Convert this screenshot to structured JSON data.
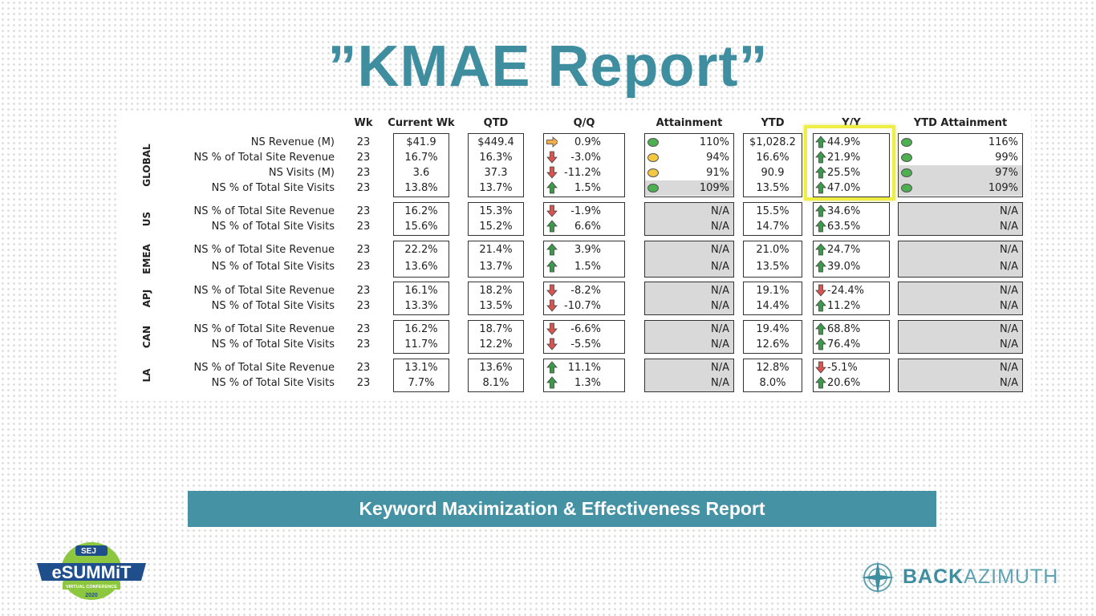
{
  "slide": {
    "title": "”KMAE Report”",
    "banner": "Keyword Maximization & Effectiveness Report"
  },
  "logos": {
    "esummit": {
      "top": "SEJ",
      "main": "eSUMMiT",
      "sub": "VIRTUAL CONFERENCE",
      "year": "2020"
    },
    "backazimuth": {
      "text_bold": "BACK",
      "text_light": "AZIMUTH"
    }
  },
  "colors": {
    "accent": "#3e8ea0",
    "banner": "#4592a4",
    "highlight": "#eeee44",
    "arrow_up": "#3a9a4a",
    "arrow_down": "#d9534f",
    "arrow_right": "#f0ad4e",
    "dot_green": "#4caf50",
    "dot_yellow": "#f5c842",
    "na_fill": "#d9d9d9"
  },
  "table": {
    "headers": {
      "wk": "Wk",
      "current_wk": "Current Wk",
      "qtd": "QTD",
      "qq": "Q/Q",
      "attainment": "Attainment",
      "ytd": "YTD",
      "yy": "Y/Y",
      "ytd_attainment": "YTD Attainment"
    },
    "groups": [
      {
        "region": "GLOBAL",
        "rows": [
          {
            "label": "NS Revenue (M)",
            "wk": "23",
            "current": "$41.9",
            "qtd": "$449.4",
            "qq": "0.9%",
            "qq_dir": "right",
            "att": "110%",
            "att_dot": "green",
            "ytd": "$1,028.2",
            "yy": "44.9%",
            "yy_dir": "up",
            "ytda": "116%",
            "ytda_dot": "green"
          },
          {
            "label": "NS % of Total Site Revenue",
            "wk": "23",
            "current": "16.7%",
            "qtd": "16.3%",
            "qq": "-3.0%",
            "qq_dir": "down",
            "att": "94%",
            "att_dot": "yellow",
            "ytd": "16.6%",
            "yy": "21.9%",
            "yy_dir": "up",
            "ytda": "99%",
            "ytda_dot": "green"
          },
          {
            "label": "NS Visits (M)",
            "wk": "23",
            "current": "3.6",
            "qtd": "37.3",
            "qq": "-11.2%",
            "qq_dir": "down",
            "att": "91%",
            "att_dot": "yellow",
            "ytd": "90.9",
            "yy": "25.5%",
            "yy_dir": "up",
            "ytda": "97%",
            "ytda_dot": "green"
          },
          {
            "label": "NS % of Total Site Visits",
            "wk": "23",
            "current": "13.8%",
            "qtd": "13.7%",
            "qq": "1.5%",
            "qq_dir": "up",
            "att": "109%",
            "att_dot": "green",
            "ytd": "13.5%",
            "yy": "47.0%",
            "yy_dir": "up",
            "ytda": "109%",
            "ytda_dot": "green"
          }
        ]
      },
      {
        "region": "US",
        "rows": [
          {
            "label": "NS % of Total Site Revenue",
            "wk": "23",
            "current": "16.2%",
            "qtd": "15.3%",
            "qq": "-1.9%",
            "qq_dir": "down",
            "att": "N/A",
            "ytd": "15.5%",
            "yy": "34.6%",
            "yy_dir": "up",
            "ytda": "N/A"
          },
          {
            "label": "NS % of Total Site Visits",
            "wk": "23",
            "current": "15.6%",
            "qtd": "15.2%",
            "qq": "6.6%",
            "qq_dir": "up",
            "att": "N/A",
            "ytd": "14.7%",
            "yy": "63.5%",
            "yy_dir": "up",
            "ytda": "N/A"
          }
        ]
      },
      {
        "region": "EMEA",
        "rows": [
          {
            "label": "NS % of Total Site Revenue",
            "wk": "23",
            "current": "22.2%",
            "qtd": "21.4%",
            "qq": "3.9%",
            "qq_dir": "up",
            "att": "N/A",
            "ytd": "21.0%",
            "yy": "24.7%",
            "yy_dir": "up",
            "ytda": "N/A"
          },
          {
            "label": "NS % of Total Site Visits",
            "wk": "23",
            "current": "13.6%",
            "qtd": "13.7%",
            "qq": "1.5%",
            "qq_dir": "up",
            "att": "N/A",
            "ytd": "13.5%",
            "yy": "39.0%",
            "yy_dir": "up",
            "ytda": "N/A"
          }
        ]
      },
      {
        "region": "APJ",
        "rows": [
          {
            "label": "NS % of Total Site Revenue",
            "wk": "23",
            "current": "16.1%",
            "qtd": "18.2%",
            "qq": "-8.2%",
            "qq_dir": "down",
            "att": "N/A",
            "ytd": "19.1%",
            "yy": "-24.4%",
            "yy_dir": "down",
            "ytda": "N/A"
          },
          {
            "label": "NS % of Total Site Visits",
            "wk": "23",
            "current": "13.3%",
            "qtd": "13.5%",
            "qq": "-10.7%",
            "qq_dir": "down",
            "att": "N/A",
            "ytd": "14.4%",
            "yy": "11.2%",
            "yy_dir": "up",
            "ytda": "N/A"
          }
        ]
      },
      {
        "region": "CAN",
        "rows": [
          {
            "label": "NS % of Total Site Revenue",
            "wk": "23",
            "current": "16.2%",
            "qtd": "18.7%",
            "qq": "-6.6%",
            "qq_dir": "down",
            "att": "N/A",
            "ytd": "19.4%",
            "yy": "68.8%",
            "yy_dir": "up",
            "ytda": "N/A"
          },
          {
            "label": "NS % of Total Site Visits",
            "wk": "23",
            "current": "11.7%",
            "qtd": "12.2%",
            "qq": "-5.5%",
            "qq_dir": "down",
            "att": "N/A",
            "ytd": "12.6%",
            "yy": "76.4%",
            "yy_dir": "up",
            "ytda": "N/A"
          }
        ]
      },
      {
        "region": "LA",
        "rows": [
          {
            "label": "NS % of Total Site Revenue",
            "wk": "23",
            "current": "13.1%",
            "qtd": "13.6%",
            "qq": "11.1%",
            "qq_dir": "up",
            "att": "N/A",
            "ytd": "12.8%",
            "yy": "-5.1%",
            "yy_dir": "down",
            "ytda": "N/A"
          },
          {
            "label": "NS % of Total Site Visits",
            "wk": "23",
            "current": "7.7%",
            "qtd": "8.1%",
            "qq": "1.3%",
            "qq_dir": "up",
            "att": "N/A",
            "ytd": "8.0%",
            "yy": "20.6%",
            "yy_dir": "up",
            "ytda": "N/A"
          }
        ]
      }
    ]
  }
}
